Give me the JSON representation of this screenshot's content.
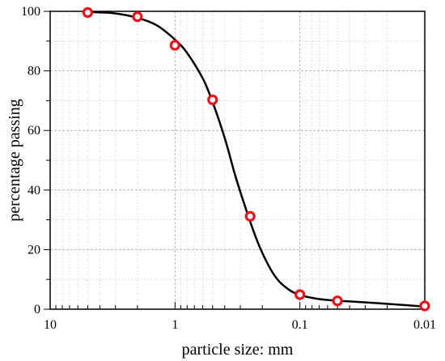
{
  "chart_data": {
    "type": "scatter",
    "title": "",
    "xlabel": "particle size: mm",
    "ylabel": "percentage passing",
    "x_scale": "log",
    "x_reversed": true,
    "xlim": [
      10,
      0.01
    ],
    "ylim": [
      0,
      100
    ],
    "x_ticks": [
      10,
      1,
      0.1,
      0.01
    ],
    "x_tick_labels": [
      "10",
      "1",
      "0.1",
      "0.01"
    ],
    "y_ticks": [
      0,
      20,
      40,
      60,
      80,
      100
    ],
    "y_tick_labels": [
      "0",
      "20",
      "40",
      "60",
      "80",
      "100"
    ],
    "grid": true,
    "legend": "none",
    "series": [
      {
        "kind": "points",
        "marker": "open-circle",
        "color": "#e8141b",
        "points": [
          {
            "x": 5,
            "y": 99.6
          },
          {
            "x": 2,
            "y": 98.2
          },
          {
            "x": 1,
            "y": 88.6
          },
          {
            "x": 0.5,
            "y": 70.3
          },
          {
            "x": 0.25,
            "y": 31.2
          },
          {
            "x": 0.1,
            "y": 4.9
          },
          {
            "x": 0.05,
            "y": 2.8
          },
          {
            "x": 0.01,
            "y": 1.1
          }
        ]
      },
      {
        "kind": "curve",
        "color": "#000000",
        "points": [
          {
            "x": 5,
            "y": 99.8
          },
          {
            "x": 3,
            "y": 99.3
          },
          {
            "x": 2,
            "y": 97.8
          },
          {
            "x": 1.4,
            "y": 95.3
          },
          {
            "x": 1,
            "y": 90.5
          },
          {
            "x": 0.8,
            "y": 86.0
          },
          {
            "x": 0.6,
            "y": 77.5
          },
          {
            "x": 0.5,
            "y": 69.5
          },
          {
            "x": 0.4,
            "y": 57.5
          },
          {
            "x": 0.33,
            "y": 45.0
          },
          {
            "x": 0.27,
            "y": 33.5
          },
          {
            "x": 0.22,
            "y": 23.0
          },
          {
            "x": 0.18,
            "y": 15.0
          },
          {
            "x": 0.15,
            "y": 9.8
          },
          {
            "x": 0.12,
            "y": 6.3
          },
          {
            "x": 0.1,
            "y": 4.8
          },
          {
            "x": 0.08,
            "y": 3.8
          },
          {
            "x": 0.06,
            "y": 3.1
          },
          {
            "x": 0.04,
            "y": 2.6
          },
          {
            "x": 0.02,
            "y": 1.8
          },
          {
            "x": 0.01,
            "y": 0.9
          }
        ]
      }
    ]
  }
}
